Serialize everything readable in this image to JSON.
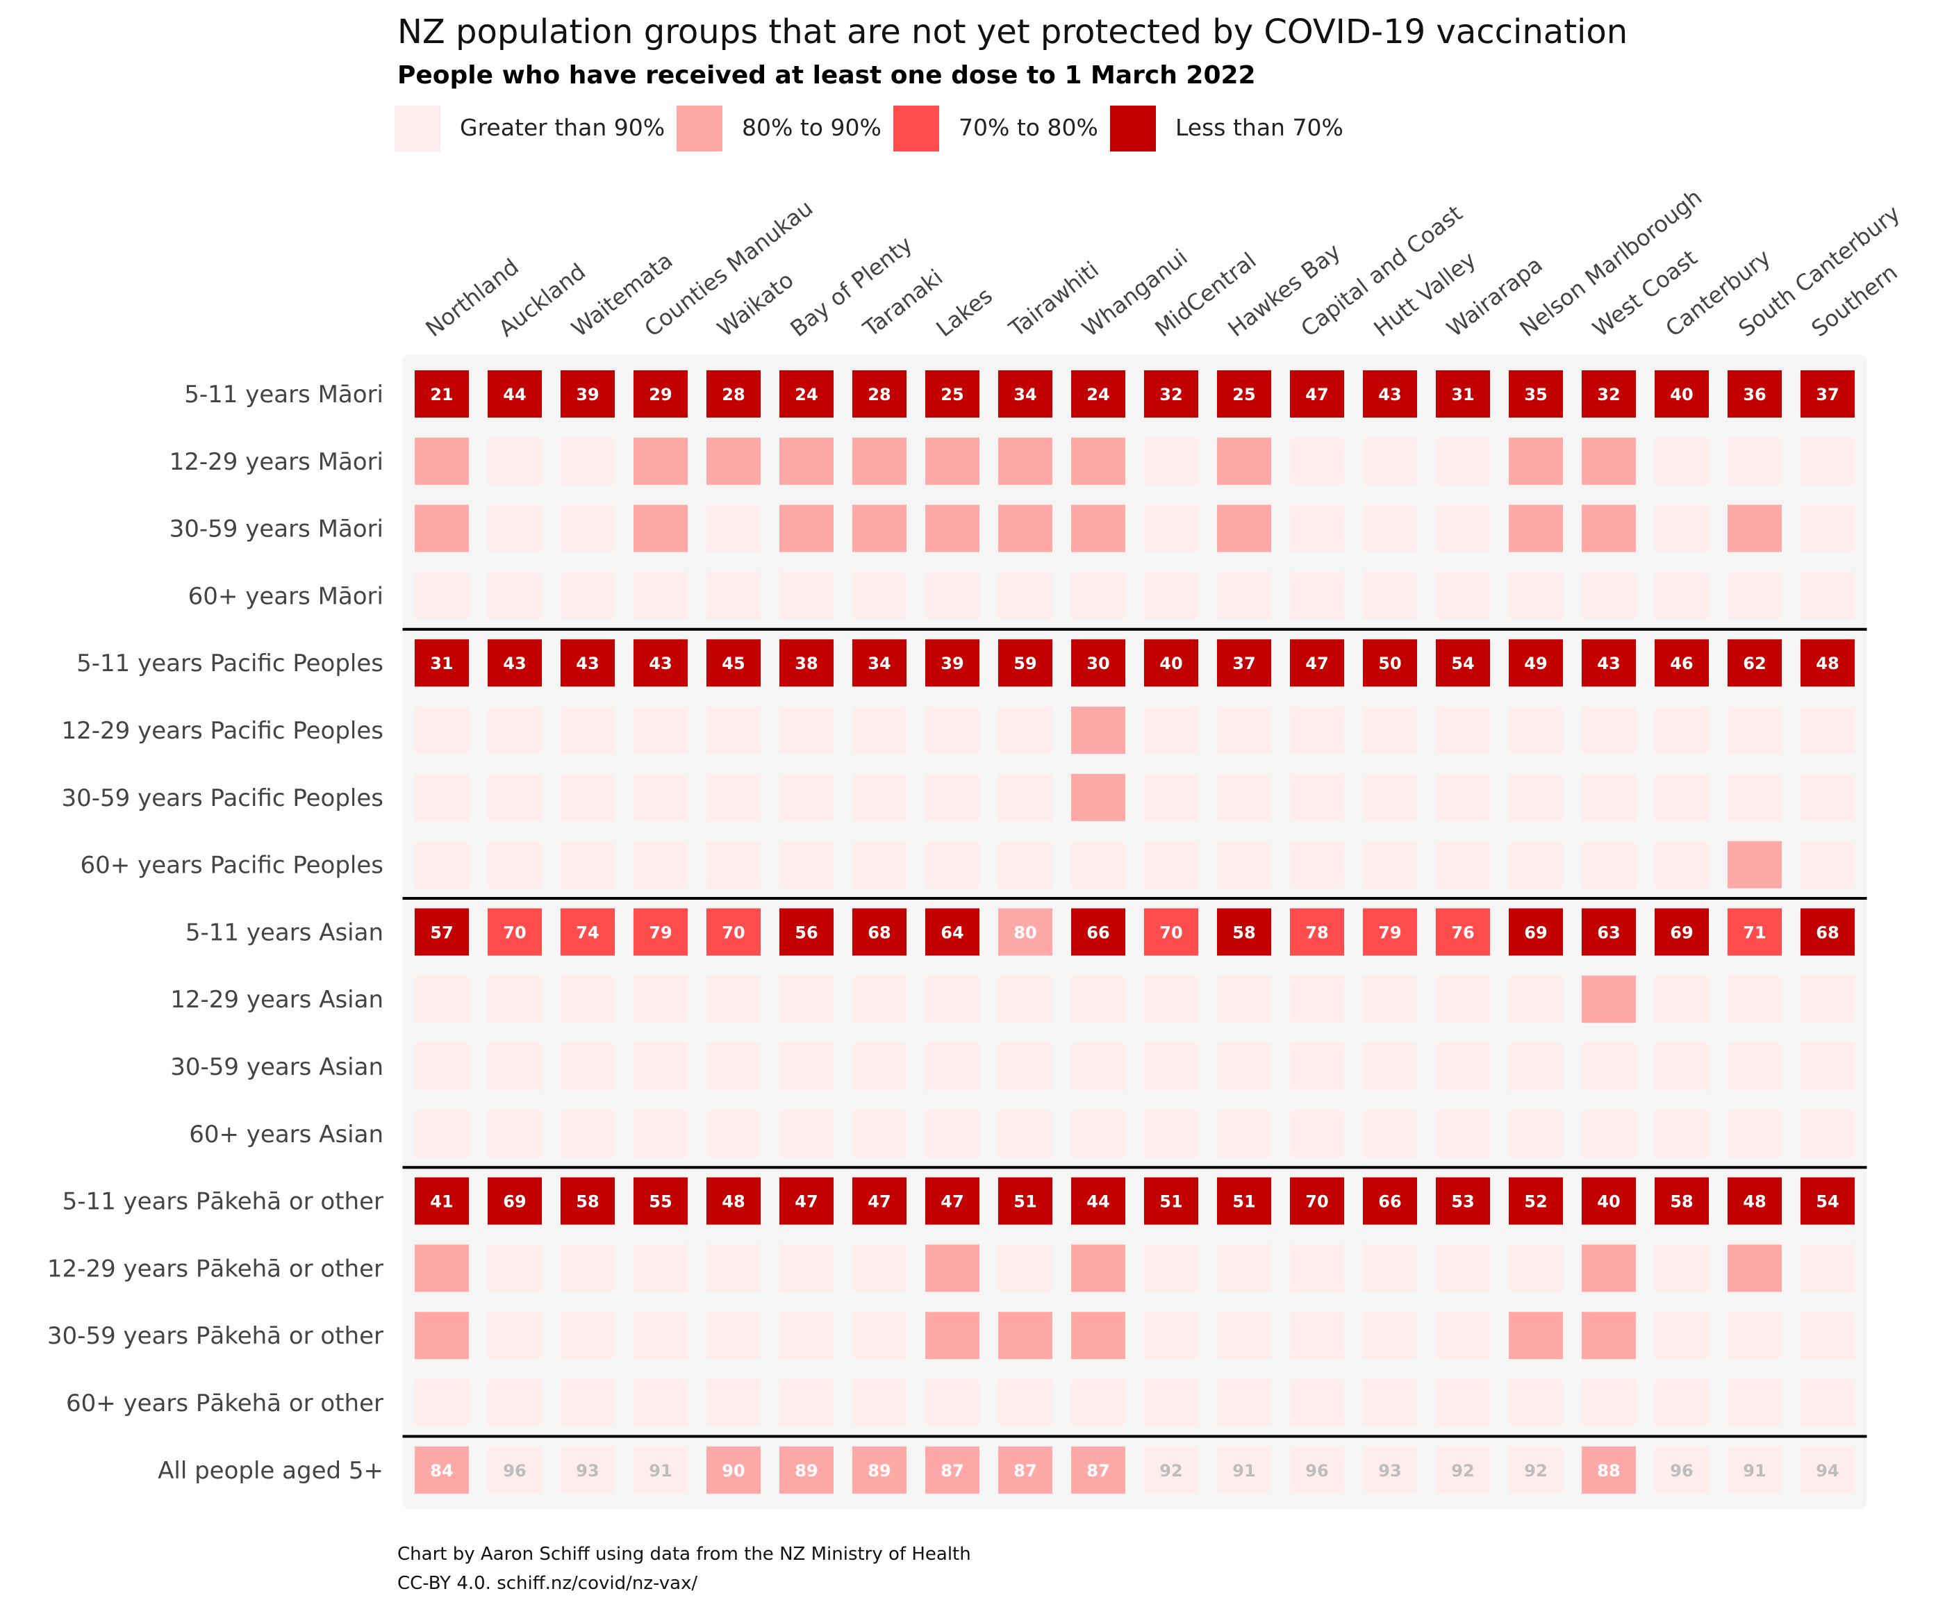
{
  "title": "NZ population groups that are not yet protected by COVID-19 vaccination",
  "subtitle": "People who have received at least one dose to 1 March 2022",
  "legend": [
    {
      "label": "Greater than 90%",
      "color": "#FFEDED"
    },
    {
      "label": "80% to 90%",
      "color": "#FFA8A8"
    },
    {
      "label": "70% to 80%",
      "color": "#FF4D4D"
    },
    {
      "label": "Less than 70%",
      "color": "#C20000"
    }
  ],
  "caption": {
    "line1": "Chart by Aaron Schiff using data from the NZ Ministry of Health",
    "line2": "CC-BY 4.0. schiff.nz/covid/nz-vax/"
  },
  "colors": {
    "panel": "#F5F5F5",
    "gt90": "#FFEDED",
    "r80_90": "#FFA8A8",
    "r70_80": "#FF4D4D",
    "lt70": "#C20000",
    "separator": "#000000",
    "label_light": "#BDBDBD"
  },
  "chart_data": {
    "type": "heatmap",
    "title": "NZ population groups that are not yet protected by COVID-19 vaccination",
    "subtitle": "People who have received at least one dose to 1 March 2022",
    "columns": [
      "Northland",
      "Auckland",
      "Waitemata",
      "Counties Manukau",
      "Waikato",
      "Bay of Plenty",
      "Taranaki",
      "Lakes",
      "Tairawhiti",
      "Whanganui",
      "MidCentral",
      "Hawkes Bay",
      "Capital and Coast",
      "Hutt Valley",
      "Wairarapa",
      "Nelson Marlborough",
      "West Coast",
      "Canterbury",
      "South Canterbury",
      "Southern"
    ],
    "rows": [
      "5-11 years Māori",
      "12-29 years Māori",
      "30-59 years Māori",
      "60+ years Māori",
      "5-11 years Pacific Peoples",
      "12-29 years Pacific Peoples",
      "30-59 years Pacific Peoples",
      "60+ years Pacific Peoples",
      "5-11 years Asian",
      "12-29 years Asian",
      "30-59 years Asian",
      "60+ years Asian",
      "5-11 years Pākehā or other",
      "12-29 years Pākehā or other",
      "30-59 years Pākehā or other",
      "60+ years Pākehā or other",
      "All people aged 5+"
    ],
    "categories": [
      "Greater than 90%",
      "80% to 90%",
      "70% to 80%",
      "Less than 70%"
    ],
    "category_codes": {
      "g": "Greater than 90%",
      "b": "80% to 90%",
      "r": "70% to 80%",
      "d": "Less than 70%"
    },
    "cells": [
      [
        "d",
        "d",
        "d",
        "d",
        "d",
        "d",
        "d",
        "d",
        "d",
        "d",
        "d",
        "d",
        "d",
        "d",
        "d",
        "d",
        "d",
        "d",
        "d",
        "d"
      ],
      [
        "b",
        "g",
        "g",
        "b",
        "b",
        "b",
        "b",
        "b",
        "b",
        "b",
        "g",
        "b",
        "g",
        "g",
        "g",
        "b",
        "b",
        "g",
        "g",
        "g"
      ],
      [
        "b",
        "g",
        "g",
        "b",
        "g",
        "b",
        "b",
        "b",
        "b",
        "b",
        "g",
        "b",
        "g",
        "g",
        "g",
        "b",
        "b",
        "g",
        "b",
        "g"
      ],
      [
        "g",
        "g",
        "g",
        "g",
        "g",
        "g",
        "g",
        "g",
        "g",
        "g",
        "g",
        "g",
        "g",
        "g",
        "g",
        "g",
        "g",
        "g",
        "g",
        "g"
      ],
      [
        "d",
        "d",
        "d",
        "d",
        "d",
        "d",
        "d",
        "d",
        "d",
        "d",
        "d",
        "d",
        "d",
        "d",
        "d",
        "d",
        "d",
        "d",
        "d",
        "d"
      ],
      [
        "g",
        "g",
        "g",
        "g",
        "g",
        "g",
        "g",
        "g",
        "g",
        "b",
        "g",
        "g",
        "g",
        "g",
        "g",
        "g",
        "g",
        "g",
        "g",
        "g"
      ],
      [
        "g",
        "g",
        "g",
        "g",
        "g",
        "g",
        "g",
        "g",
        "g",
        "b",
        "g",
        "g",
        "g",
        "g",
        "g",
        "g",
        "g",
        "g",
        "g",
        "g"
      ],
      [
        "g",
        "g",
        "g",
        "g",
        "g",
        "g",
        "g",
        "g",
        "g",
        "g",
        "g",
        "g",
        "g",
        "g",
        "g",
        "g",
        "g",
        "g",
        "b",
        "g"
      ],
      [
        "d",
        "r",
        "r",
        "r",
        "r",
        "d",
        "d",
        "d",
        "b",
        "d",
        "r",
        "d",
        "r",
        "r",
        "r",
        "d",
        "d",
        "d",
        "r",
        "d"
      ],
      [
        "g",
        "g",
        "g",
        "g",
        "g",
        "g",
        "g",
        "g",
        "g",
        "g",
        "g",
        "g",
        "g",
        "g",
        "g",
        "g",
        "b",
        "g",
        "g",
        "g"
      ],
      [
        "g",
        "g",
        "g",
        "g",
        "g",
        "g",
        "g",
        "g",
        "g",
        "g",
        "g",
        "g",
        "g",
        "g",
        "g",
        "g",
        "g",
        "g",
        "g",
        "g"
      ],
      [
        "g",
        "g",
        "g",
        "g",
        "g",
        "g",
        "g",
        "g",
        "g",
        "g",
        "g",
        "g",
        "g",
        "g",
        "g",
        "g",
        "g",
        "g",
        "g",
        "g"
      ],
      [
        "d",
        "d",
        "d",
        "d",
        "d",
        "d",
        "d",
        "d",
        "d",
        "d",
        "d",
        "d",
        "d",
        "d",
        "d",
        "d",
        "d",
        "d",
        "d",
        "d"
      ],
      [
        "b",
        "g",
        "g",
        "g",
        "g",
        "g",
        "g",
        "b",
        "g",
        "b",
        "g",
        "g",
        "g",
        "g",
        "g",
        "g",
        "b",
        "g",
        "b",
        "g"
      ],
      [
        "b",
        "g",
        "g",
        "g",
        "g",
        "g",
        "g",
        "b",
        "b",
        "b",
        "g",
        "g",
        "g",
        "g",
        "g",
        "b",
        "b",
        "g",
        "g",
        "g"
      ],
      [
        "g",
        "g",
        "g",
        "g",
        "g",
        "g",
        "g",
        "g",
        "g",
        "g",
        "g",
        "g",
        "g",
        "g",
        "g",
        "g",
        "g",
        "g",
        "g",
        "g"
      ],
      [
        "b",
        "g",
        "g",
        "g",
        "b",
        "b",
        "b",
        "b",
        "b",
        "b",
        "g",
        "g",
        "g",
        "g",
        "g",
        "g",
        "b",
        "g",
        "g",
        "g"
      ]
    ],
    "labels": {
      "5-11 years Māori": [
        21,
        44,
        39,
        29,
        28,
        24,
        28,
        25,
        34,
        24,
        32,
        25,
        47,
        43,
        31,
        35,
        32,
        40,
        36,
        37
      ],
      "5-11 years Pacific Peoples": [
        31,
        43,
        43,
        43,
        45,
        38,
        34,
        39,
        59,
        30,
        40,
        37,
        47,
        50,
        54,
        49,
        43,
        46,
        62,
        48
      ],
      "5-11 years Asian": [
        57,
        70,
        74,
        79,
        70,
        56,
        68,
        64,
        80,
        66,
        70,
        58,
        78,
        79,
        76,
        69,
        63,
        69,
        71,
        68
      ],
      "5-11 years Pākehā or other": [
        41,
        69,
        58,
        55,
        48,
        47,
        47,
        47,
        51,
        44,
        51,
        51,
        70,
        66,
        53,
        52,
        40,
        58,
        48,
        54
      ],
      "All people aged 5+": [
        84,
        96,
        93,
        91,
        90,
        89,
        89,
        87,
        87,
        87,
        92,
        91,
        96,
        93,
        92,
        92,
        88,
        96,
        91,
        94
      ]
    },
    "group_separators_after_rows": [
      4,
      8,
      12,
      16
    ],
    "legend_position": "top"
  }
}
